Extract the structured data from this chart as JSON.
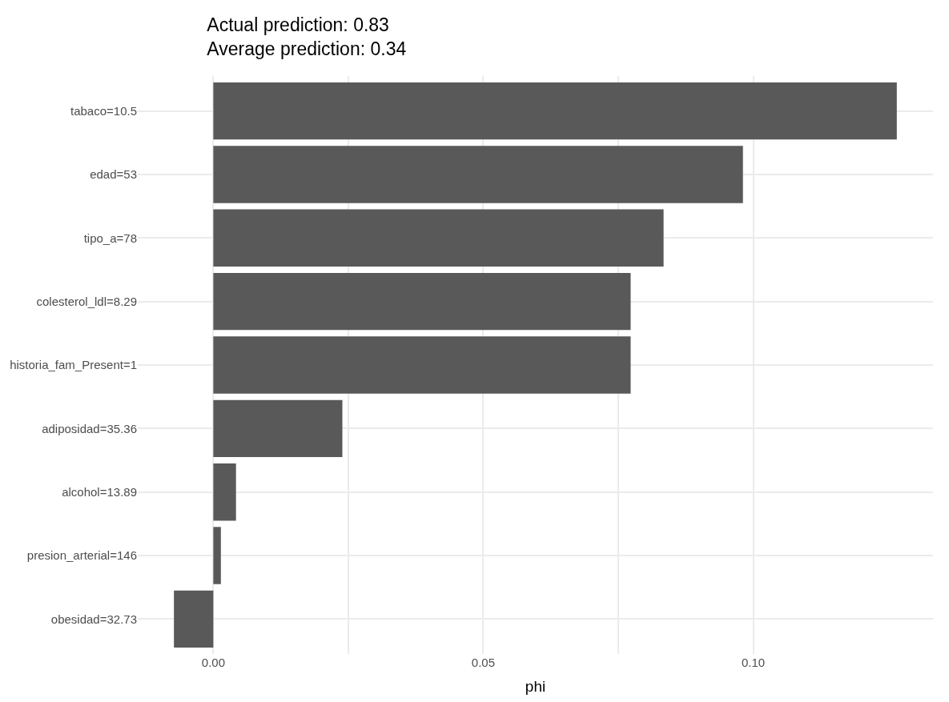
{
  "chart_data": {
    "type": "bar",
    "orientation": "horizontal",
    "title": "Actual prediction: 0.83\nAverage prediction: 0.34",
    "xlabel": "phi",
    "categories": [
      "tabaco=10.5",
      "edad=53",
      "tipo_a=78",
      "colesterol_ldl=8.29",
      "historia_fam_Present=1",
      "adiposidad=35.36",
      "alcohol=13.89",
      "presion_arterial=146",
      "obesidad=32.73"
    ],
    "values": [
      0.1266,
      0.0981,
      0.0834,
      0.0773,
      0.0773,
      0.0239,
      0.0042,
      0.0014,
      -0.0073
    ],
    "color": "#595959",
    "xlim": [
      -0.014,
      0.1333
    ],
    "xticks": [
      {
        "value": 0,
        "label": "0.00"
      },
      {
        "value": 0.025,
        "label": null
      },
      {
        "value": 0.05,
        "label": "0.05"
      },
      {
        "value": 0.075,
        "label": null
      },
      {
        "value": 0.1,
        "label": "0.10"
      }
    ],
    "grid": true
  }
}
